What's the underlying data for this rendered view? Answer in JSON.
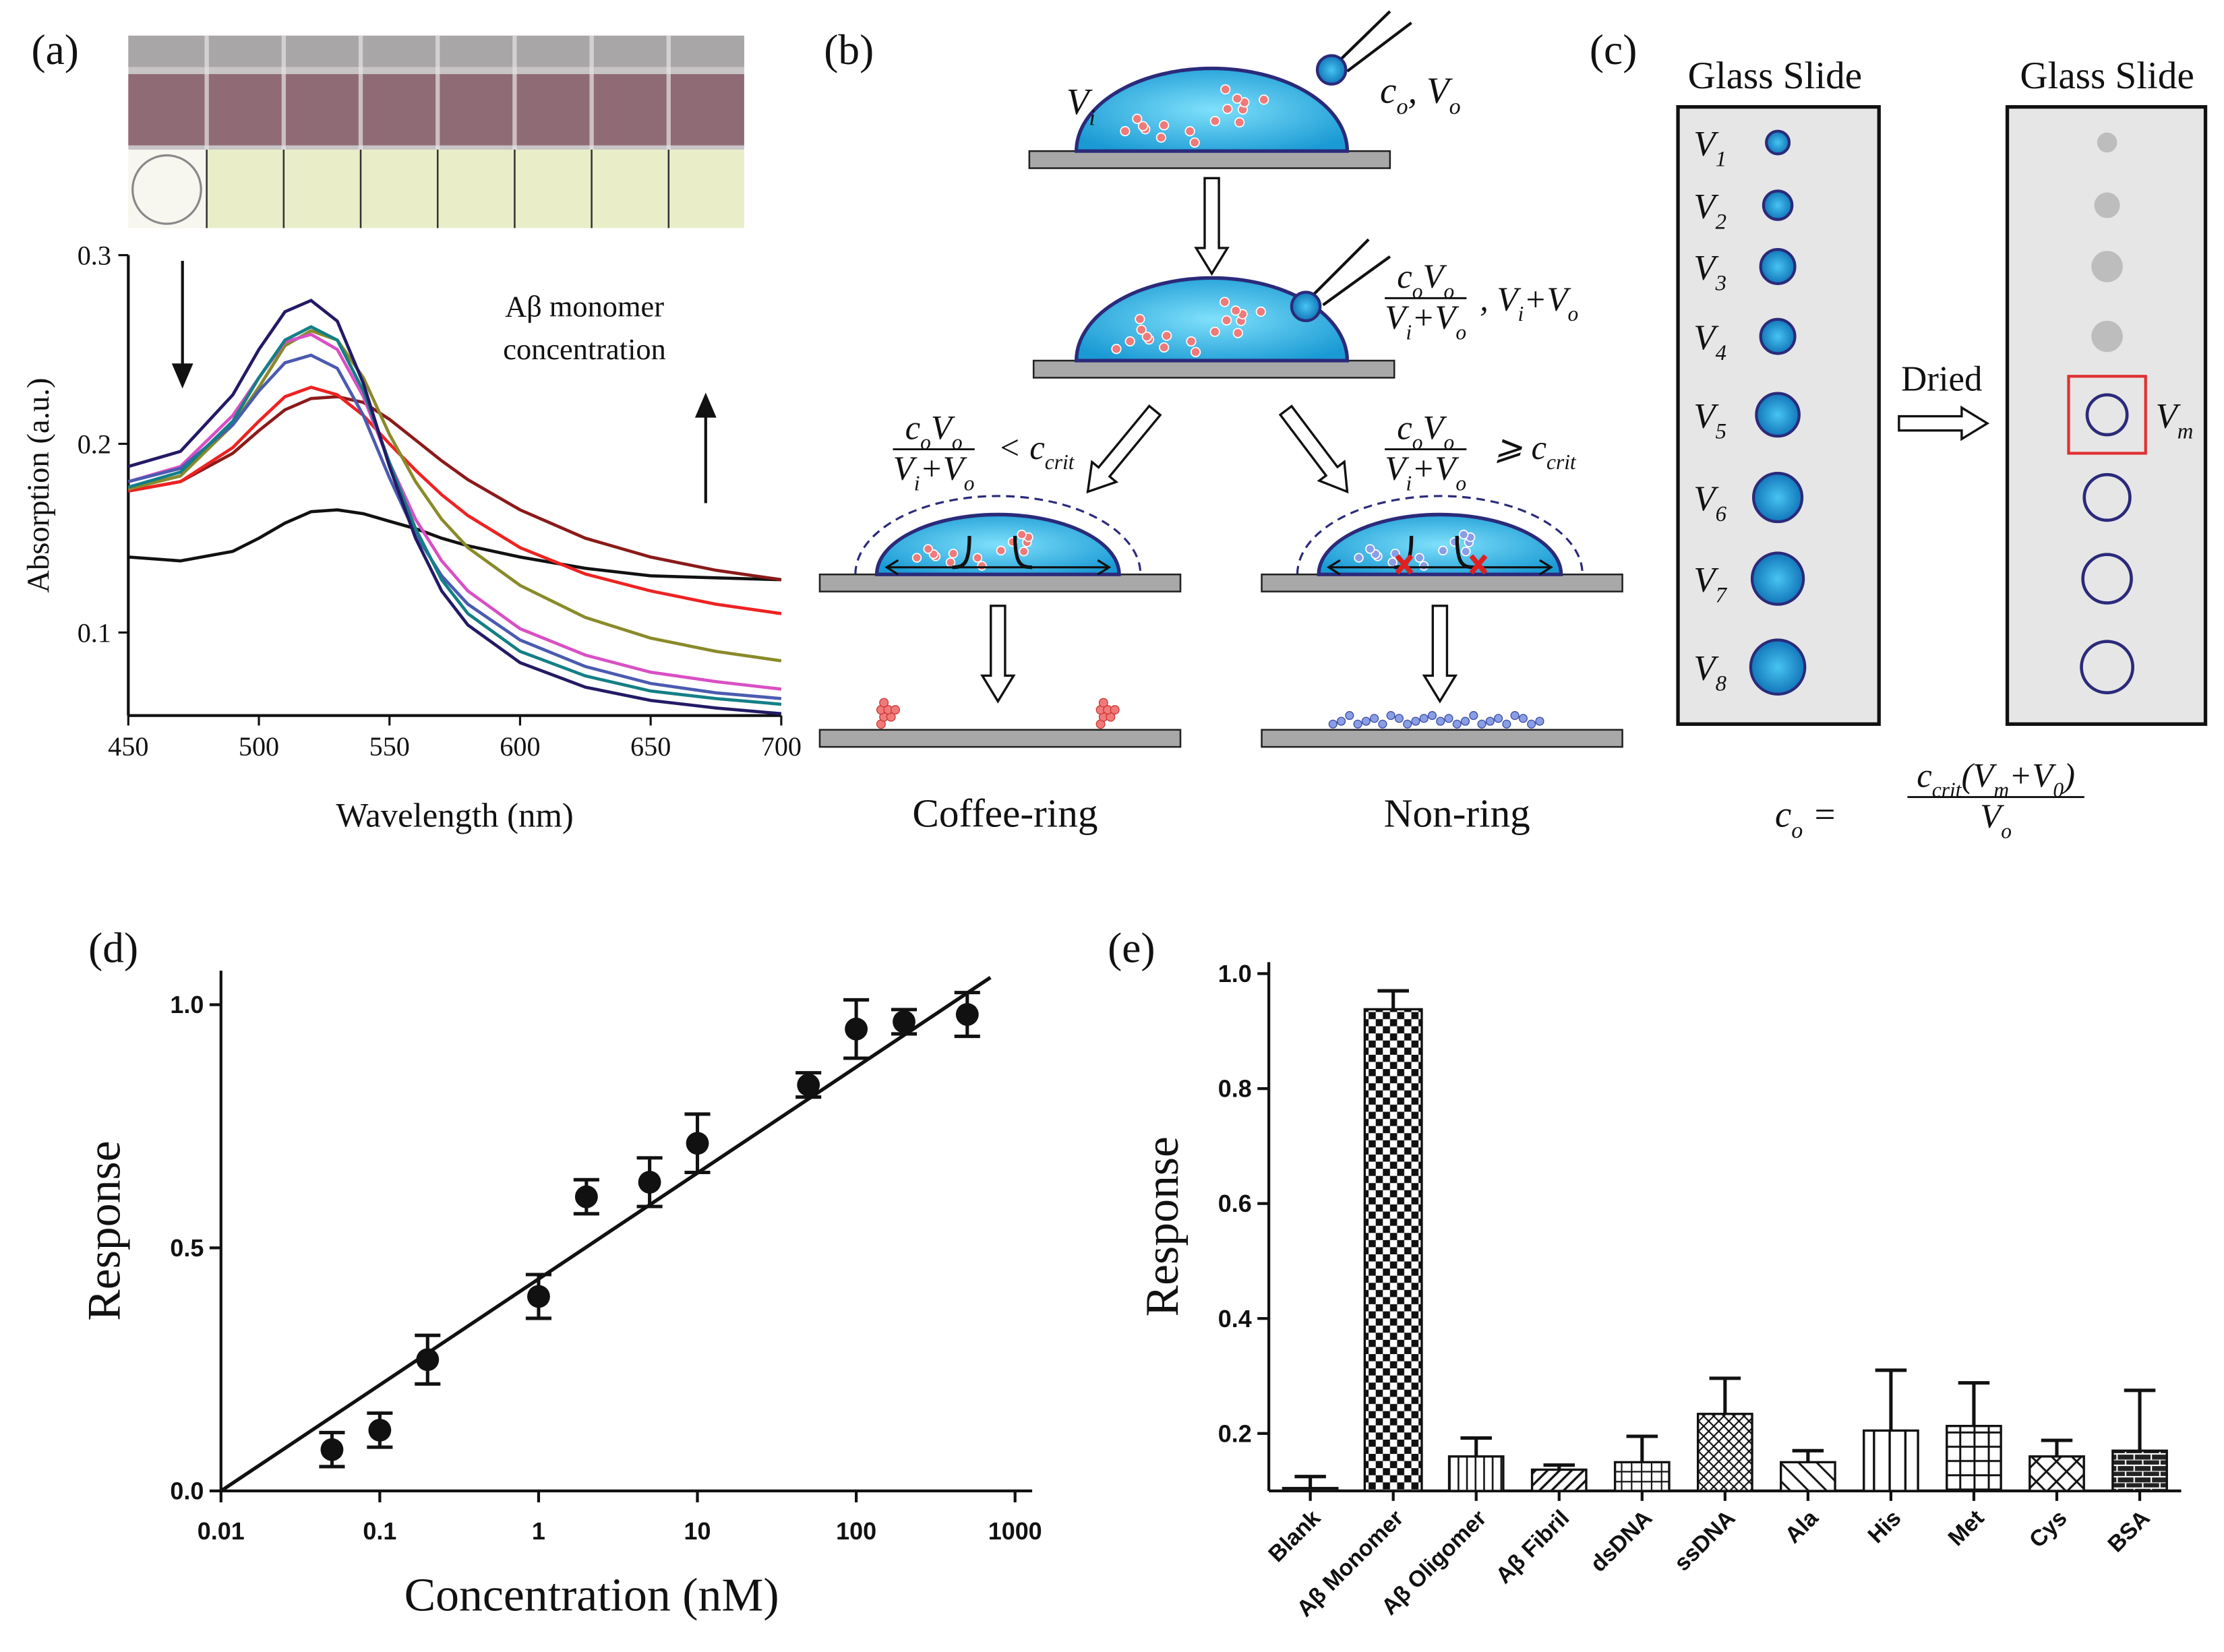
{
  "chart_data": [
    {
      "type": "line",
      "panel": "(a)",
      "xlabel": "Wavelength (nm)",
      "ylabel": "Absorption (a.u.)",
      "annotation": [
        "Aβ monomer",
        "concentration"
      ],
      "x": [
        450,
        470,
        490,
        500,
        510,
        520,
        530,
        540,
        550,
        560,
        570,
        580,
        600,
        625,
        650,
        675,
        700
      ],
      "xlim": [
        450,
        700
      ],
      "xticks": [
        450,
        500,
        550,
        600,
        650,
        700
      ],
      "ylim": [
        0.056,
        0.3
      ],
      "yticks": [
        0.1,
        0.2,
        0.3
      ],
      "series": [
        {
          "color": "#111111",
          "values": [
            0.14,
            0.138,
            0.143,
            0.15,
            0.158,
            0.164,
            0.165,
            0.163,
            0.159,
            0.155,
            0.15,
            0.146,
            0.14,
            0.134,
            0.13,
            0.129,
            0.128
          ]
        },
        {
          "color": "#8b1a1a",
          "values": [
            0.175,
            0.18,
            0.195,
            0.207,
            0.218,
            0.224,
            0.225,
            0.222,
            0.213,
            0.202,
            0.191,
            0.181,
            0.165,
            0.15,
            0.14,
            0.133,
            0.128
          ]
        },
        {
          "color": "#ee2222",
          "values": [
            0.175,
            0.18,
            0.198,
            0.212,
            0.225,
            0.23,
            0.226,
            0.215,
            0.2,
            0.186,
            0.173,
            0.162,
            0.145,
            0.131,
            0.122,
            0.115,
            0.11
          ]
        },
        {
          "color": "#8a8a2a",
          "values": [
            0.176,
            0.183,
            0.21,
            0.23,
            0.252,
            0.26,
            0.255,
            0.235,
            0.205,
            0.18,
            0.16,
            0.145,
            0.125,
            0.108,
            0.097,
            0.09,
            0.085
          ]
        },
        {
          "color": "#d94fc4",
          "values": [
            0.18,
            0.188,
            0.215,
            0.235,
            0.254,
            0.258,
            0.25,
            0.225,
            0.19,
            0.16,
            0.138,
            0.122,
            0.102,
            0.088,
            0.079,
            0.074,
            0.07
          ]
        },
        {
          "color": "#4a5bb0",
          "values": [
            0.18,
            0.187,
            0.21,
            0.228,
            0.243,
            0.247,
            0.24,
            0.215,
            0.182,
            0.152,
            0.13,
            0.115,
            0.096,
            0.082,
            0.073,
            0.068,
            0.065
          ]
        },
        {
          "color": "#137f86",
          "values": [
            0.177,
            0.185,
            0.212,
            0.235,
            0.255,
            0.262,
            0.255,
            0.228,
            0.19,
            0.155,
            0.128,
            0.11,
            0.09,
            0.077,
            0.069,
            0.065,
            0.062
          ]
        },
        {
          "color": "#231a66",
          "values": [
            0.188,
            0.196,
            0.226,
            0.25,
            0.27,
            0.276,
            0.265,
            0.232,
            0.188,
            0.15,
            0.122,
            0.104,
            0.084,
            0.071,
            0.064,
            0.06,
            0.057
          ]
        }
      ]
    },
    {
      "type": "scatter",
      "panel": "(d)",
      "xlabel": "Concentration (nM)",
      "ylabel": "Response",
      "log_x": true,
      "color": "#111111",
      "x": [
        0.05,
        0.1,
        0.2,
        1,
        2,
        5,
        10,
        50,
        100,
        200,
        500
      ],
      "values": [
        0.085,
        0.125,
        0.27,
        0.4,
        0.605,
        0.635,
        0.715,
        0.835,
        0.95,
        0.965,
        0.98
      ],
      "errors": [
        0.035,
        0.035,
        0.05,
        0.045,
        0.035,
        0.05,
        0.06,
        0.025,
        0.06,
        0.025,
        0.045
      ],
      "fit": {
        "x": [
          0.01,
          700
        ],
        "values": [
          0,
          1.056
        ]
      },
      "xlim": [
        0.01,
        1000
      ],
      "xticks": [
        0.01,
        0.1,
        1,
        10,
        100,
        1000
      ],
      "ylim": [
        0,
        1.07
      ],
      "yticks": [
        {
          "value": 0,
          "label": "0.0"
        },
        0.5,
        {
          "value": 1,
          "label": "1.0"
        }
      ]
    },
    {
      "type": "bar",
      "panel": "(e)",
      "ylabel": "Response",
      "categories": [
        "Blank",
        "Aβ Monomer",
        "Aβ Oligomer",
        "Aβ Fibril",
        "dsDNA",
        "ssDNA",
        "Ala",
        "His",
        "Met",
        "Cys",
        "BSA"
      ],
      "values": [
        0.105,
        0.938,
        0.16,
        0.137,
        0.15,
        0.234,
        0.15,
        0.205,
        0.213,
        0.16,
        0.17
      ],
      "errors": [
        0.02,
        0.032,
        0.032,
        0.008,
        0.045,
        0.062,
        0.02,
        0.105,
        0.075,
        0.028,
        0.105
      ],
      "ylim": [
        0.1,
        1.02
      ],
      "yticks": [
        0.2,
        0.4,
        0.6,
        0.8,
        {
          "value": 1,
          "label": "1.0"
        }
      ]
    }
  ],
  "diagram_b": {
    "panel": "(b)",
    "drop_volume": [
      {
        "text": "V",
        "sub": "i"
      }
    ],
    "added": [
      {
        "text": "c",
        "sub": "o"
      },
      {
        "text": ", V",
        "sub": "o"
      }
    ],
    "mixed": {
      "num": [
        {
          "text": "c",
          "sub": "o"
        },
        {
          "text": "V",
          "sub": "o"
        }
      ],
      "den": [
        {
          "text": "V",
          "sub": "i"
        },
        {
          "text": "+V",
          "sub": "o"
        }
      ]
    },
    "total": [
      {
        "text": ", V",
        "sub": "i"
      },
      {
        "text": "+V",
        "sub": "o"
      }
    ],
    "below": {
      "num": [
        {
          "text": "c",
          "sub": "o"
        },
        {
          "text": "V",
          "sub": "o"
        }
      ],
      "den": [
        {
          "text": "V",
          "sub": "i"
        },
        {
          "text": "+V",
          "sub": "o"
        }
      ],
      "rel": [
        {
          "text": "< c",
          "sub": "crit"
        }
      ]
    },
    "above": {
      "num": [
        {
          "text": "c",
          "sub": "o"
        },
        {
          "text": "V",
          "sub": "o"
        }
      ],
      "den": [
        {
          "text": "V",
          "sub": "i"
        },
        {
          "text": "+V",
          "sub": "o"
        }
      ],
      "rel": [
        {
          "text": "⩾ c",
          "sub": "crit"
        }
      ]
    },
    "left_result": "Coffee-ring",
    "right_result": "Non-ring"
  },
  "diagram_c": {
    "panel": "(c)",
    "slide_titles": [
      "Glass Slide",
      "Glass Slide"
    ],
    "volumes": [
      [
        {
          "text": "V",
          "sub": "1"
        }
      ],
      [
        {
          "text": "V",
          "sub": "2"
        }
      ],
      [
        {
          "text": "V",
          "sub": "3"
        }
      ],
      [
        {
          "text": "V",
          "sub": "4"
        }
      ],
      [
        {
          "text": "V",
          "sub": "5"
        }
      ],
      [
        {
          "text": "V",
          "sub": "6"
        }
      ],
      [
        {
          "text": "V",
          "sub": "7"
        }
      ],
      [
        {
          "text": "V",
          "sub": "8"
        }
      ]
    ],
    "dried": "Dried",
    "marked": [
      {
        "text": "V",
        "sub": "m"
      }
    ],
    "result": {
      "lhs": [
        {
          "text": "c",
          "sub": "o"
        },
        {
          "text": " ="
        }
      ],
      "frac": {
        "num": [
          {
            "text": "c",
            "sub": "crit"
          },
          {
            "text": "(V",
            "sub": "m"
          },
          {
            "text": "+V",
            "sub": "0"
          },
          {
            "text": ")"
          }
        ],
        "den": [
          {
            "text": "V",
            "sub": "o"
          }
        ]
      }
    }
  }
}
